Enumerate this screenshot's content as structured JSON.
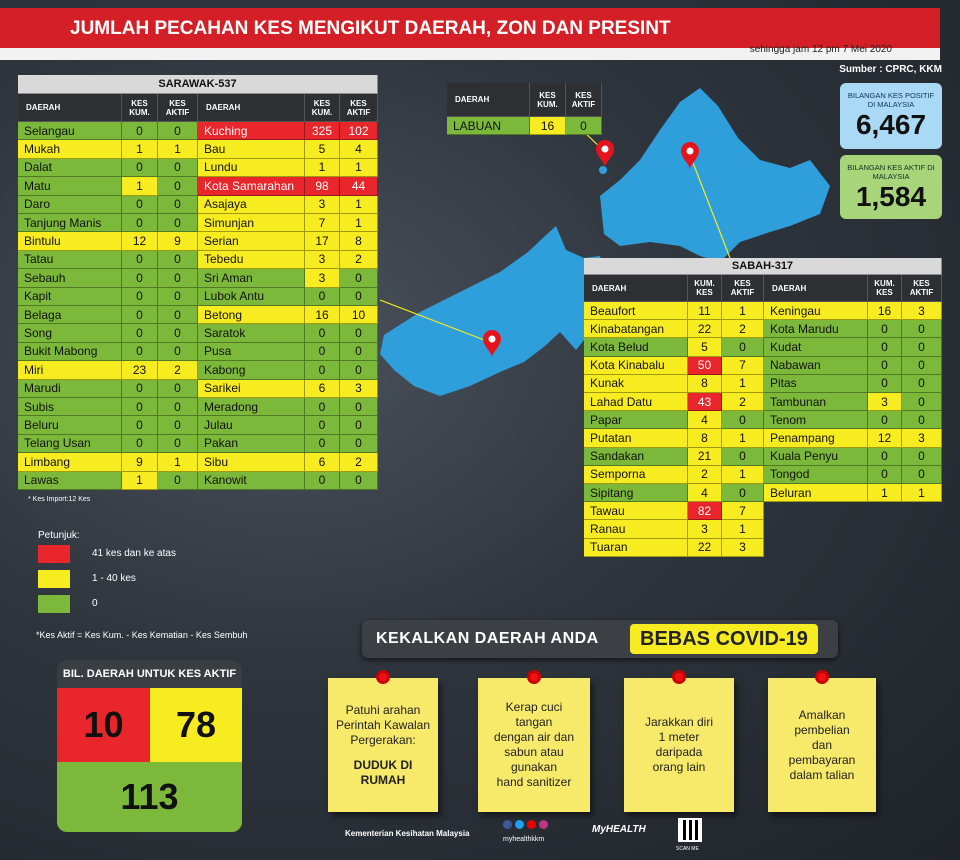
{
  "header": {
    "title": "JUMLAH PECAHAN KES MENGIKUT DAERAH, ZON DAN PRESINT",
    "subtitle": "sehingga jam 12 pm 7 Mei 2020",
    "source": "Sumber : CPRC, KKM"
  },
  "stats": [
    {
      "label": "BILANGAN KES POSITIF DI MALAYSIA",
      "value": "6,467"
    },
    {
      "label": "BILANGAN KES AKTIF DI MALAYSIA",
      "value": "1,584"
    }
  ],
  "legend": {
    "title": "Petunjuk:",
    "items": [
      {
        "label": "41 kes dan ke atas",
        "min": 41,
        "color": "#e8262b"
      },
      {
        "label": "1 - 40 kes",
        "min": 1,
        "color": "#f6ec1f"
      },
      {
        "label": "0",
        "min": 0,
        "color": "#7cb83a"
      }
    ]
  },
  "sarawak": {
    "title": "SARAWAK-537",
    "header": [
      "DAERAH",
      "KES KUM.",
      "KES AKTIF",
      "DAERAH",
      "KES KUM.",
      "KES AKTIF"
    ],
    "left": [
      [
        "Selangau",
        0,
        0
      ],
      [
        "Mukah",
        1,
        1
      ],
      [
        "Dalat",
        0,
        0
      ],
      [
        "Matu",
        1,
        0
      ],
      [
        "Daro",
        0,
        0
      ],
      [
        "Tanjung Manis",
        0,
        0
      ],
      [
        "Bintulu",
        12,
        9
      ],
      [
        "Tatau",
        0,
        0
      ],
      [
        "Sebauh",
        0,
        0
      ],
      [
        "Kapit",
        0,
        0
      ],
      [
        "Belaga",
        0,
        0
      ],
      [
        "Song",
        0,
        0
      ],
      [
        "Bukit Mabong",
        0,
        0
      ],
      [
        "Miri",
        23,
        2
      ],
      [
        "Marudi",
        0,
        0
      ],
      [
        "Subis",
        0,
        0
      ],
      [
        "Beluru",
        0,
        0
      ],
      [
        "Telang Usan",
        0,
        0
      ],
      [
        "Limbang",
        9,
        1
      ],
      [
        "Lawas",
        1,
        0
      ]
    ],
    "right": [
      [
        "Kuching",
        325,
        102
      ],
      [
        "Bau",
        5,
        4
      ],
      [
        "Lundu",
        1,
        1
      ],
      [
        "Kota Samarahan",
        98,
        44
      ],
      [
        "Asajaya",
        3,
        1
      ],
      [
        "Simunjan",
        7,
        1
      ],
      [
        "Serian",
        17,
        8
      ],
      [
        "Tebedu",
        3,
        2
      ],
      [
        "Sri Aman",
        3,
        0
      ],
      [
        "Lubok Antu",
        0,
        0
      ],
      [
        "Betong",
        16,
        10
      ],
      [
        "Saratok",
        0,
        0
      ],
      [
        "Pusa",
        0,
        0
      ],
      [
        "Kabong",
        0,
        0
      ],
      [
        "Sarikei",
        6,
        3
      ],
      [
        "Meradong",
        0,
        0
      ],
      [
        "Julau",
        0,
        0
      ],
      [
        "Pakan",
        0,
        0
      ],
      [
        "Sibu",
        6,
        2
      ],
      [
        "Kanowit",
        0,
        0
      ]
    ],
    "note": "* Kes Import:12 Kes"
  },
  "labuan": {
    "header": [
      "DAERAH",
      "KES KUM.",
      "KES AKTIF"
    ],
    "rows": [
      [
        "LABUAN",
        16,
        0
      ]
    ]
  },
  "sabah": {
    "title": "SABAH-317",
    "header": [
      "DAERAH",
      "KUM. KES",
      "KES AKTIF",
      "DAERAH",
      "KUM. KES",
      "KES AKTIF"
    ],
    "left": [
      [
        "Beaufort",
        11,
        1
      ],
      [
        "Kinabatangan",
        22,
        2
      ],
      [
        "Kota Belud",
        5,
        0
      ],
      [
        "Kota Kinabalu",
        50,
        7
      ],
      [
        "Kunak",
        8,
        1
      ],
      [
        "Lahad Datu",
        43,
        2
      ],
      [
        "Papar",
        4,
        0
      ],
      [
        "Putatan",
        8,
        1
      ],
      [
        "Sandakan",
        21,
        0
      ],
      [
        "Semporna",
        2,
        1
      ],
      [
        "Sipitang",
        4,
        0
      ],
      [
        "Tawau",
        82,
        7
      ],
      [
        "Ranau",
        3,
        1
      ],
      [
        "Tuaran",
        22,
        3
      ]
    ],
    "right": [
      [
        "Keningau",
        16,
        3
      ],
      [
        "Kota Marudu",
        0,
        0
      ],
      [
        "Kudat",
        0,
        0
      ],
      [
        "Nabawan",
        0,
        0
      ],
      [
        "Pitas",
        0,
        0
      ],
      [
        "Tambunan",
        3,
        0
      ],
      [
        "Tenom",
        0,
        0
      ],
      [
        "Penampang",
        12,
        3
      ],
      [
        "Kuala Penyu",
        0,
        0
      ],
      [
        "Tongod",
        0,
        0
      ],
      [
        "Beluran",
        1,
        1
      ]
    ]
  },
  "definition": "*Kes Aktif = Kes Kum. - Kes Kematian - Kes Sembuh",
  "active_districts": {
    "title": "BIL. DAERAH UNTUK KES AKTIF",
    "counts": [
      10,
      78,
      113
    ]
  },
  "campaign": {
    "text": "KEKALKAN DAERAH ANDA",
    "highlight": "BEBAS COVID-19"
  },
  "notes": [
    {
      "lines": [
        "Patuhi arahan",
        "Perintah Kawalan",
        "Pergerakan:"
      ],
      "emphasis": [
        "DUDUK DI",
        "RUMAH"
      ]
    },
    {
      "lines": [
        "Kerap cuci",
        "tangan",
        "dengan air dan",
        "sabun atau",
        "gunakan",
        "hand sanitizer"
      ]
    },
    {
      "lines": [
        "Jarakkan diri",
        "1 meter",
        "daripada",
        "orang lain"
      ]
    },
    {
      "lines": [
        "Amalkan",
        "pembelian",
        "dan",
        "pembayaran",
        "dalam talian"
      ]
    }
  ],
  "footer": {
    "ministry": "Kementerian Kesihatan Malaysia",
    "handle": "myhealthkkm",
    "logo": "MyHEALTH",
    "qr": "SCAN ME"
  }
}
